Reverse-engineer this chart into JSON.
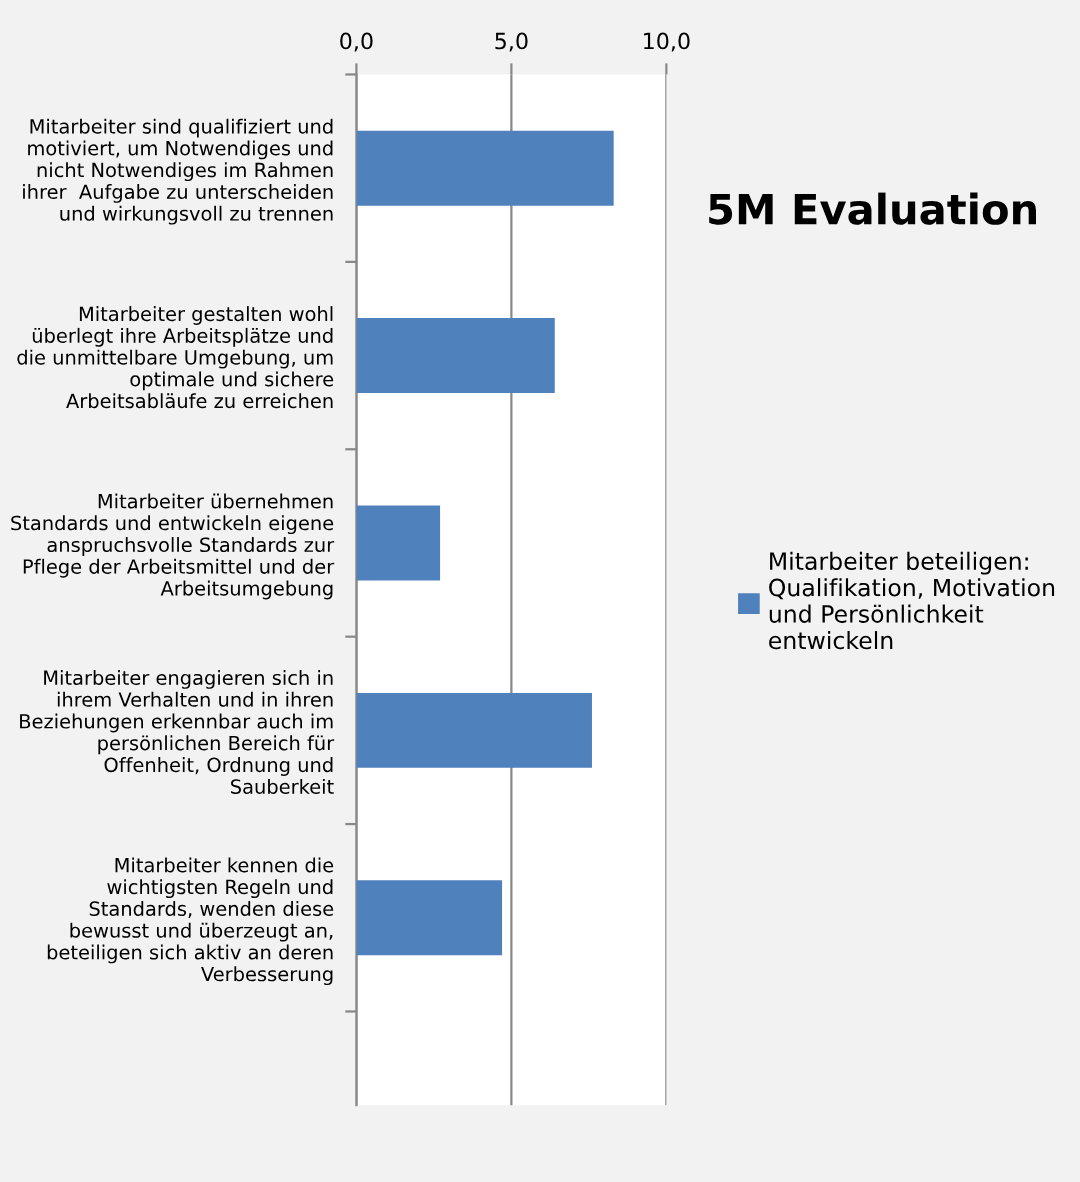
{
  "chart_data": {
    "type": "bar",
    "orientation": "horizontal",
    "title": "5M Evaluation",
    "categories": [
      "Mitarbeiter sind qualifiziert und\nmotiviert, um Notwendiges und\nnicht Notwendiges im Rahmen\nihrer  Aufgabe zu unterscheiden\nund wirkungsvoll zu trennen",
      "Mitarbeiter gestalten wohl\nüberlegt ihre Arbeitsplätze und\ndie unmittelbare Umgebung, um\noptimale und sichere\nArbeitsabläufe zu erreichen",
      "Mitarbeiter übernehmen\nStandards und entwickeln eigene\nanspruchsvolle Standards zur\nPflege der Arbeitsmittel und der\nArbeitsumgebung",
      "Mitarbeiter engagieren sich in\nihrem Verhalten und in ihren\nBeziehungen erkennbar auch im\npersönlichen Bereich für\nOffenheit, Ordnung und\nSauberkeit",
      "Mitarbeiter kennen die\nwichtigsten Regeln und\nStandards, wenden diese\nbewusst und überzeugt an,\nbeteiligen sich aktiv an deren\nVerbesserung"
    ],
    "series": [
      {
        "name": "Mitarbeiter beteiligen:\nQualifikation, Motivation\nund Persönlichkeit\nentwickeln",
        "color": "#4f81bd",
        "values": [
          8.3,
          6.4,
          2.7,
          7.6,
          4.7
        ]
      }
    ],
    "xlim": [
      0,
      10
    ],
    "xticks": [
      {
        "value": 0,
        "label": "0,0"
      },
      {
        "value": 5,
        "label": "5,0"
      },
      {
        "value": 10,
        "label": "10,0"
      }
    ],
    "grid": "x",
    "legend": "right"
  }
}
